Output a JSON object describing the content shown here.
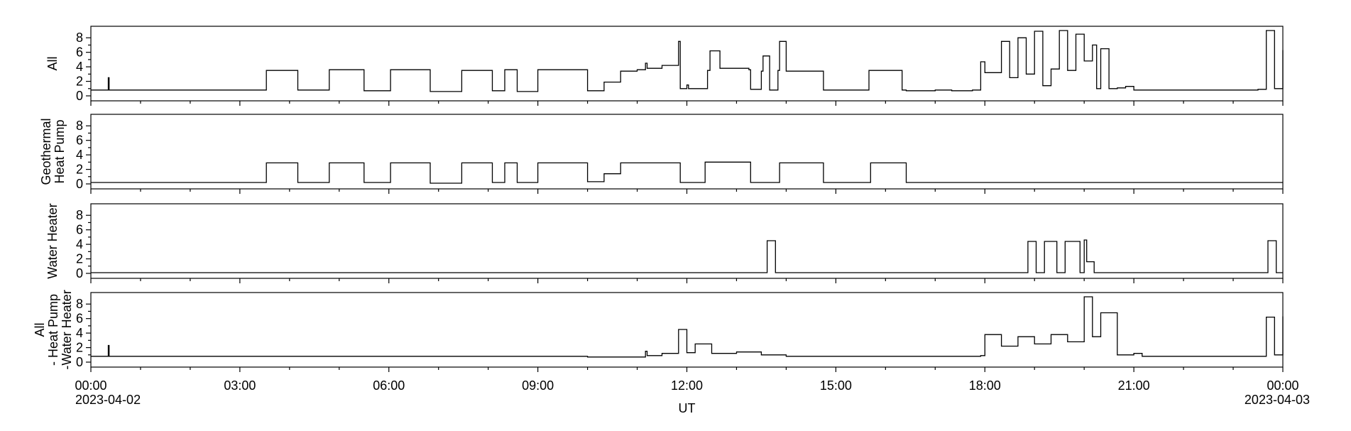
{
  "chart_data": {
    "type": "line",
    "xlabel": "UT",
    "x_ticks": [
      "00:00",
      "03:00",
      "06:00",
      "09:00",
      "12:00",
      "15:00",
      "18:00",
      "21:00",
      "00:00"
    ],
    "x_date_start": "2023-04-02",
    "x_date_end": "2023-04-03",
    "xlim": [
      "2023-04-02 00:00",
      "2023-04-03 00:00"
    ],
    "shared_ylim": [
      0,
      9
    ],
    "y_ticks": [
      "0",
      "2",
      "4",
      "6",
      "8"
    ],
    "grid": false,
    "panels": [
      {
        "ylabel_lines": [
          "All"
        ],
        "series": {
          "x": [
            "00:00",
            "00:20",
            "00:21",
            "00:22",
            "01:50",
            "02:00",
            "03:30",
            "03:32",
            "03:55",
            "04:10",
            "04:12",
            "04:45",
            "04:48",
            "05:25",
            "05:30",
            "06:00",
            "06:02",
            "06:45",
            "06:50",
            "07:00",
            "07:25",
            "07:28",
            "08:00",
            "08:05",
            "08:20",
            "08:30",
            "08:35",
            "09:00",
            "09:50",
            "10:00",
            "10:20",
            "10:25",
            "10:40",
            "10:42",
            "11:00",
            "11:10",
            "11:12",
            "11:30",
            "11:50",
            "11:52",
            "12:00",
            "12:02",
            "12:25",
            "12:28",
            "12:40",
            "13:15",
            "13:17",
            "13:30",
            "13:32",
            "13:40",
            "13:50",
            "13:52",
            "14:00",
            "14:40",
            "14:45",
            "15:00",
            "15:40",
            "15:42",
            "16:20",
            "16:25",
            "17:00",
            "17:20",
            "17:45",
            "17:50",
            "17:55",
            "18:00",
            "18:20",
            "18:30",
            "18:40",
            "18:50",
            "19:00",
            "19:10",
            "19:20",
            "19:30",
            "19:40",
            "19:50",
            "20:00",
            "20:10",
            "20:15",
            "20:20",
            "20:30",
            "20:40",
            "20:50",
            "21:00",
            "21:10",
            "21:50",
            "22:00",
            "23:00",
            "23:30",
            "23:35",
            "23:40",
            "23:50",
            "24:00"
          ],
          "y": [
            0.8,
            0.8,
            2.5,
            0.8,
            0.8,
            0.8,
            0.8,
            3.5,
            3.5,
            0.8,
            0.8,
            0.8,
            3.6,
            3.6,
            0.7,
            0.7,
            3.6,
            3.6,
            0.6,
            0.6,
            0.6,
            3.5,
            3.5,
            0.7,
            3.6,
            3.6,
            0.6,
            3.6,
            3.6,
            0.7,
            1.9,
            1.9,
            3.4,
            3.4,
            3.6,
            4.5,
            3.8,
            4.2,
            7.5,
            1.0,
            1.5,
            1.0,
            3.5,
            6.2,
            3.8,
            3.6,
            0.9,
            3.4,
            5.5,
            0.8,
            3.5,
            7.5,
            3.4,
            3.4,
            0.8,
            0.8,
            3.5,
            3.5,
            0.8,
            0.7,
            0.8,
            0.7,
            0.8,
            0.8,
            4.7,
            3.2,
            7.5,
            2.5,
            8.0,
            3.0,
            8.9,
            1.4,
            3.7,
            9.0,
            3.5,
            8.5,
            4.8,
            7.0,
            1.0,
            6.5,
            1.0,
            1.1,
            1.3,
            0.8,
            0.8,
            0.8,
            0.8,
            0.8,
            0.9,
            0.9,
            9.0,
            1.0,
            6.3
          ]
        }
      },
      {
        "ylabel_lines": [
          "Geothermal",
          "Heat Pump"
        ],
        "series": {
          "x": [
            "00:00",
            "01:50",
            "02:00",
            "03:30",
            "03:32",
            "03:55",
            "04:10",
            "04:12",
            "04:45",
            "04:48",
            "05:25",
            "05:30",
            "06:00",
            "06:02",
            "06:45",
            "06:50",
            "07:00",
            "07:25",
            "07:28",
            "08:00",
            "08:05",
            "08:20",
            "08:30",
            "08:35",
            "09:00",
            "09:50",
            "10:00",
            "10:20",
            "10:25",
            "10:40",
            "10:42",
            "11:00",
            "11:10",
            "11:50",
            "11:52",
            "12:00",
            "12:20",
            "12:22",
            "13:15",
            "13:17",
            "13:50",
            "13:52",
            "14:40",
            "14:45",
            "15:40",
            "15:42",
            "16:20",
            "16:25",
            "18:00",
            "20:00",
            "24:00"
          ],
          "y": [
            0.2,
            0.2,
            0.2,
            0.2,
            2.9,
            2.9,
            0.2,
            0.2,
            0.2,
            2.9,
            2.9,
            0.2,
            0.2,
            2.9,
            2.9,
            0.1,
            0.1,
            0.1,
            2.9,
            2.9,
            0.2,
            2.9,
            2.9,
            0.2,
            2.9,
            2.9,
            0.3,
            1.4,
            1.4,
            2.9,
            2.9,
            2.9,
            2.9,
            2.9,
            0.2,
            0.2,
            0.2,
            3.0,
            3.0,
            0.2,
            0.2,
            2.9,
            2.9,
            0.2,
            0.2,
            2.9,
            2.9,
            0.2,
            0.2,
            0.2,
            0.2
          ]
        }
      },
      {
        "ylabel_lines": [
          "Water Heater"
        ],
        "series": {
          "x": [
            "00:00",
            "13:35",
            "13:37",
            "13:45",
            "13:47",
            "18:50",
            "18:52",
            "19:00",
            "19:02",
            "19:10",
            "19:12",
            "19:25",
            "19:27",
            "19:35",
            "19:37",
            "19:55",
            "19:57",
            "20:00",
            "20:03",
            "20:10",
            "20:12",
            "23:40",
            "23:42",
            "23:50",
            "23:52",
            "24:00"
          ],
          "y": [
            0.1,
            0.1,
            4.5,
            4.5,
            0.1,
            0.1,
            4.4,
            4.4,
            0.1,
            0.1,
            4.4,
            4.4,
            0.1,
            0.1,
            4.4,
            0.1,
            0.1,
            4.6,
            1.6,
            1.6,
            0.1,
            0.1,
            4.5,
            4.5,
            0.1,
            0.1
          ]
        }
      },
      {
        "ylabel_lines": [
          "All",
          "- Heat Pump",
          "-Water Heater"
        ],
        "series": {
          "x": [
            "00:00",
            "00:20",
            "00:21",
            "00:22",
            "10:00",
            "11:10",
            "11:12",
            "11:30",
            "11:50",
            "12:00",
            "12:10",
            "12:30",
            "13:00",
            "13:30",
            "14:00",
            "15:00",
            "16:00",
            "17:00",
            "17:55",
            "18:00",
            "18:20",
            "18:40",
            "19:00",
            "19:20",
            "19:40",
            "20:00",
            "20:10",
            "20:20",
            "20:40",
            "21:00",
            "21:10",
            "23:30",
            "23:40",
            "23:50",
            "24:00"
          ],
          "y": [
            0.8,
            0.8,
            2.3,
            0.8,
            0.7,
            1.5,
            0.9,
            1.2,
            4.5,
            1.3,
            2.5,
            1.2,
            1.4,
            1.0,
            0.8,
            0.8,
            0.8,
            0.8,
            0.9,
            3.8,
            2.2,
            3.5,
            2.5,
            3.8,
            2.8,
            9.0,
            3.5,
            6.8,
            1.0,
            1.2,
            0.8,
            0.8,
            6.2,
            1.0,
            6.3
          ]
        }
      }
    ]
  }
}
